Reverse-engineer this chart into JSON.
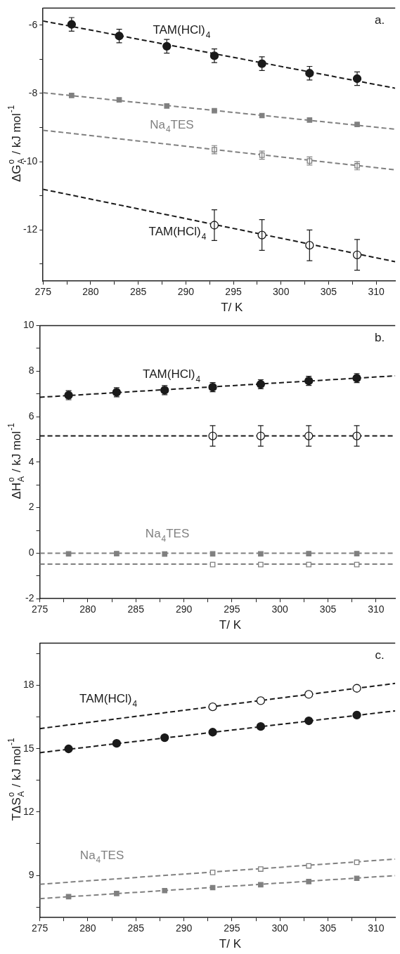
{
  "chart_data": [
    {
      "type": "scatter",
      "title": "a.",
      "xlabel": "T/ K",
      "ylabel": "ΔG$^{o}$$_{A}$ / kJ mol$^{-1}$",
      "xlim": [
        275,
        312
      ],
      "xticks": [
        275,
        {
          "value": 277.5,
          "label": null
        },
        280,
        {
          "value": 282.5,
          "label": null
        },
        285,
        {
          "value": 287.5,
          "label": null
        },
        290,
        {
          "value": 292.5,
          "label": null
        },
        295,
        {
          "value": 297.5,
          "label": null
        },
        300,
        {
          "value": 302.5,
          "label": null
        },
        305,
        {
          "value": 307.5,
          "label": null
        },
        310
      ],
      "ylim": [
        -13.5,
        -5.5
      ],
      "yticks": [
        {
          "value": -13,
          "label": null
        },
        -12,
        {
          "value": -11,
          "label": null
        },
        -10,
        {
          "value": -9,
          "label": null
        },
        -8,
        {
          "value": -7,
          "label": null
        },
        -6
      ],
      "grid": false,
      "legend": false,
      "series": [
        {
          "name": "TAM(HCl)$_{4}$",
          "color": "#1a1a1a",
          "marker": "circle",
          "x": [
            278,
            283,
            288,
            293,
            298,
            303,
            308
          ],
          "values": [
            -5.98,
            -6.32,
            -6.62,
            -6.9,
            -7.13,
            -7.41,
            -7.57
          ],
          "errors": [
            0.2,
            0.2,
            0.2,
            0.2,
            0.2,
            0.2,
            0.2
          ]
        },
        {
          "name": "Na$_{4}$TES",
          "color": "#808080",
          "marker": "square",
          "x": [
            278,
            283,
            288,
            293,
            298,
            303,
            308
          ],
          "values": [
            -8.06,
            -8.19,
            -8.37,
            -8.51,
            -8.65,
            -8.78,
            -8.91
          ]
        },
        {
          "color": "#808080",
          "marker": "square-open",
          "x": [
            293,
            298,
            303,
            308
          ],
          "values": [
            -9.65,
            -9.81,
            -9.98,
            -10.12
          ],
          "errors": [
            0.12,
            0.12,
            0.12,
            0.12
          ]
        },
        {
          "name": "TAM(HCl)$_{4}$",
          "color": "#1a1a1a",
          "marker": "circle-open",
          "x": [
            293,
            298,
            303,
            308
          ],
          "values": [
            -11.86,
            -12.15,
            -12.45,
            -12.73
          ],
          "errors": [
            0.45,
            0.45,
            0.45,
            0.45
          ]
        },
        {
          "type": "line",
          "color": "#1a1a1a",
          "marker": "none",
          "line_style": "dashed",
          "x": [
            275,
            312
          ],
          "values": [
            -5.88,
            -7.85
          ]
        },
        {
          "type": "line",
          "color": "#808080",
          "marker": "none",
          "line_style": "dashed",
          "x": [
            275,
            312
          ],
          "values": [
            -7.98,
            -9.05
          ]
        },
        {
          "type": "line",
          "color": "#808080",
          "marker": "none",
          "line_style": "dashed",
          "x": [
            275,
            312
          ],
          "values": [
            -9.08,
            -10.24
          ]
        },
        {
          "type": "line",
          "color": "#1a1a1a",
          "marker": "none",
          "line_style": "dashed",
          "x": [
            275,
            312
          ],
          "values": [
            -10.81,
            -12.93
          ]
        }
      ]
    },
    {
      "type": "scatter",
      "title": "b.",
      "xlabel": "T/ K",
      "ylabel": "ΔH$^{o}$$_{A}$ / kJ mol$^{-1}$",
      "xlim": [
        275,
        312
      ],
      "xticks": [
        275,
        {
          "value": 277.5,
          "label": null
        },
        280,
        {
          "value": 282.5,
          "label": null
        },
        285,
        {
          "value": 287.5,
          "label": null
        },
        290,
        {
          "value": 292.5,
          "label": null
        },
        295,
        {
          "value": 297.5,
          "label": null
        },
        300,
        {
          "value": 302.5,
          "label": null
        },
        305,
        {
          "value": 307.5,
          "label": null
        },
        310
      ],
      "ylim": [
        -2,
        10
      ],
      "yticks": [
        -2,
        {
          "value": -1,
          "label": null
        },
        0,
        {
          "value": 1,
          "label": null
        },
        2,
        {
          "value": 3,
          "label": null
        },
        4,
        {
          "value": 5,
          "label": null
        },
        6,
        {
          "value": 7,
          "label": null
        },
        8,
        {
          "value": 9,
          "label": null
        },
        10
      ],
      "grid": false,
      "legend": false,
      "series": [
        {
          "name": "TAM(HCl)$_{4}$",
          "color": "#1a1a1a",
          "marker": "circle",
          "x": [
            278,
            283,
            288,
            293,
            298,
            303,
            308
          ],
          "values": [
            6.94,
            7.07,
            7.16,
            7.29,
            7.42,
            7.57,
            7.69
          ],
          "errors": [
            0.2,
            0.2,
            0.2,
            0.2,
            0.2,
            0.2,
            0.2
          ]
        },
        {
          "color": "#1a1a1a",
          "marker": "circle-open",
          "x": [
            293,
            298,
            303,
            308
          ],
          "values": [
            5.15,
            5.15,
            5.15,
            5.15
          ],
          "errors": [
            0.45,
            0.45,
            0.45,
            0.45
          ]
        },
        {
          "name": "Na$_{4}$TES",
          "color": "#808080",
          "marker": "square",
          "x": [
            278,
            283,
            288,
            293,
            298,
            303,
            308
          ],
          "values": [
            -0.03,
            -0.02,
            -0.04,
            -0.03,
            -0.03,
            -0.02,
            -0.02
          ]
        },
        {
          "color": "#808080",
          "marker": "square-open",
          "x": [
            293,
            298,
            303,
            308
          ],
          "values": [
            -0.5,
            -0.5,
            -0.5,
            -0.5
          ]
        },
        {
          "type": "line",
          "color": "#1a1a1a",
          "marker": "none",
          "line_style": "dashed",
          "x": [
            275,
            312
          ],
          "values": [
            6.85,
            7.79
          ]
        },
        {
          "type": "line",
          "color": "#1a1a1a",
          "marker": "none",
          "line_style": "dashed",
          "x": [
            275,
            312
          ],
          "values": [
            5.15,
            5.15
          ]
        },
        {
          "type": "line",
          "color": "#808080",
          "marker": "none",
          "line_style": "dashed",
          "x": [
            275,
            312
          ],
          "values": [
            0,
            0
          ]
        },
        {
          "type": "line",
          "color": "#808080",
          "marker": "none",
          "line_style": "dashed",
          "x": [
            275,
            312
          ],
          "values": [
            -0.48,
            -0.48
          ]
        }
      ]
    },
    {
      "type": "scatter",
      "title": "c.",
      "xlabel": "T/ K",
      "ylabel": "TΔS$^{o}$$_{A}$ / kJ mol$^{-1}$",
      "xlim": [
        275,
        312
      ],
      "xticks": [
        275,
        {
          "value": 277.5,
          "label": null
        },
        280,
        {
          "value": 282.5,
          "label": null
        },
        285,
        {
          "value": 287.5,
          "label": null
        },
        290,
        {
          "value": 292.5,
          "label": null
        },
        295,
        {
          "value": 297.5,
          "label": null
        },
        300,
        {
          "value": 302.5,
          "label": null
        },
        305,
        {
          "value": 307.5,
          "label": null
        },
        310
      ],
      "ylim": [
        7,
        20
      ],
      "yticks": [
        {
          "value": 7.5,
          "label": null
        },
        9,
        {
          "value": 10.5,
          "label": null
        },
        12,
        {
          "value": 13.5,
          "label": null
        },
        15,
        {
          "value": 16.5,
          "label": null
        },
        18,
        {
          "value": 19.5,
          "label": null
        }
      ],
      "grid": false,
      "legend": false,
      "series": [
        {
          "name": "TAM(HCl)$_{4}$",
          "color": "#1a1a1a",
          "marker": "circle-open",
          "x": [
            293,
            298,
            303,
            308
          ],
          "values": [
            16.98,
            17.27,
            17.57,
            17.86
          ]
        },
        {
          "color": "#1a1a1a",
          "marker": "circle",
          "x": [
            278,
            283,
            288,
            293,
            298,
            303,
            308
          ],
          "values": [
            14.99,
            15.25,
            15.52,
            15.78,
            16.05,
            16.32,
            16.59
          ]
        },
        {
          "name": "Na$_{4}$TES",
          "color": "#808080",
          "marker": "square-open",
          "x": [
            293,
            298,
            303,
            308
          ],
          "values": [
            9.14,
            9.3,
            9.45,
            9.62
          ]
        },
        {
          "color": "#808080",
          "marker": "square",
          "x": [
            278,
            283,
            288,
            293,
            298,
            303,
            308
          ],
          "values": [
            7.99,
            8.14,
            8.28,
            8.42,
            8.56,
            8.71,
            8.86
          ]
        },
        {
          "type": "line",
          "color": "#1a1a1a",
          "marker": "none",
          "line_style": "dashed",
          "x": [
            275,
            312
          ],
          "values": [
            15.95,
            18.09
          ]
        },
        {
          "type": "line",
          "color": "#1a1a1a",
          "marker": "none",
          "line_style": "dashed",
          "x": [
            275,
            312
          ],
          "values": [
            14.81,
            16.79
          ]
        },
        {
          "type": "line",
          "color": "#808080",
          "marker": "none",
          "line_style": "dashed",
          "x": [
            275,
            312
          ],
          "values": [
            8.58,
            9.77
          ]
        },
        {
          "type": "line",
          "color": "#808080",
          "marker": "none",
          "line_style": "dashed",
          "x": [
            275,
            312
          ],
          "values": [
            7.9,
            8.99
          ]
        }
      ]
    }
  ]
}
